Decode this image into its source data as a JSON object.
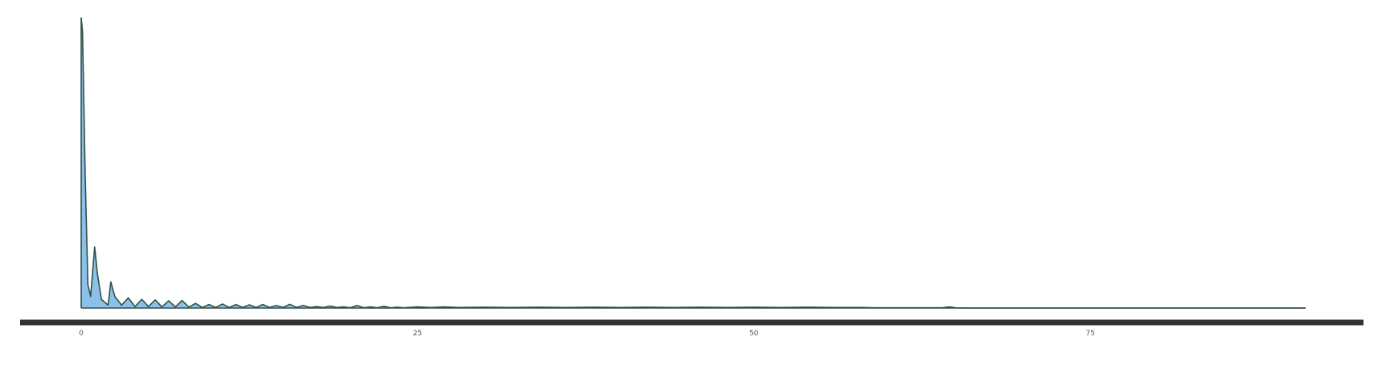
{
  "chart_data": {
    "type": "area",
    "title": "",
    "xlabel": "",
    "ylabel": "",
    "xlim": [
      0,
      91
    ],
    "ylim": [
      0,
      1
    ],
    "x_ticks": [
      0,
      25,
      50,
      75
    ],
    "x_tick_labels": [
      "0",
      "25",
      "50",
      "75"
    ],
    "y_ticks": [],
    "grid": false,
    "legend": "none",
    "series": [
      {
        "x": [
          0,
          0.1,
          0.3,
          0.5,
          0.7,
          1.0,
          1.2,
          1.5,
          2.0,
          2.2,
          2.5,
          3.0,
          3.5,
          4.0,
          4.5,
          5.0,
          5.5,
          6.0,
          6.5,
          7.0,
          7.5,
          8.0,
          8.5,
          9.0,
          9.5,
          10.0,
          10.5,
          11.0,
          11.5,
          12.0,
          12.5,
          13.0,
          13.5,
          14.0,
          14.5,
          15.0,
          15.5,
          16.0,
          16.5,
          17.0,
          17.5,
          18.0,
          18.5,
          19.0,
          19.5,
          20.0,
          20.5,
          21.0,
          21.5,
          22.0,
          22.5,
          23.0,
          23.5,
          24.0,
          25.0,
          26.0,
          27.0,
          28.0,
          30.0,
          32.0,
          34.0,
          36.0,
          38.0,
          40.0,
          42.0,
          44.0,
          46.0,
          48.0,
          50.0,
          52.0,
          54.0,
          56.0,
          58.0,
          59.0,
          60.0,
          64.0,
          64.5,
          65.0,
          66.0,
          70.0,
          75.0,
          80.0,
          85.0,
          91.0
        ],
        "y": [
          1.0,
          0.95,
          0.45,
          0.08,
          0.04,
          0.21,
          0.12,
          0.03,
          0.01,
          0.09,
          0.04,
          0.01,
          0.035,
          0.005,
          0.03,
          0.005,
          0.028,
          0.004,
          0.025,
          0.004,
          0.026,
          0.003,
          0.016,
          0.002,
          0.012,
          0.002,
          0.014,
          0.002,
          0.012,
          0.002,
          0.011,
          0.002,
          0.012,
          0.002,
          0.009,
          0.002,
          0.013,
          0.002,
          0.009,
          0.002,
          0.005,
          0.002,
          0.007,
          0.002,
          0.004,
          0.001,
          0.009,
          0.001,
          0.004,
          0.001,
          0.006,
          0.001,
          0.003,
          0.001,
          0.004,
          0.002,
          0.004,
          0.002,
          0.003,
          0.002,
          0.003,
          0.002,
          0.003,
          0.002,
          0.003,
          0.002,
          0.003,
          0.002,
          0.003,
          0.002,
          0.003,
          0.002,
          0.002,
          0.001,
          0.001,
          0.001,
          0.004,
          0.001,
          0.0,
          0.0,
          0.0,
          0.0,
          0.0,
          0.0
        ]
      }
    ]
  },
  "colors": {
    "fill": "#8dc0e8",
    "stroke": "#2e4f4a",
    "axis": "#333333",
    "tick_text": "#555555",
    "background": "#ffffff"
  }
}
